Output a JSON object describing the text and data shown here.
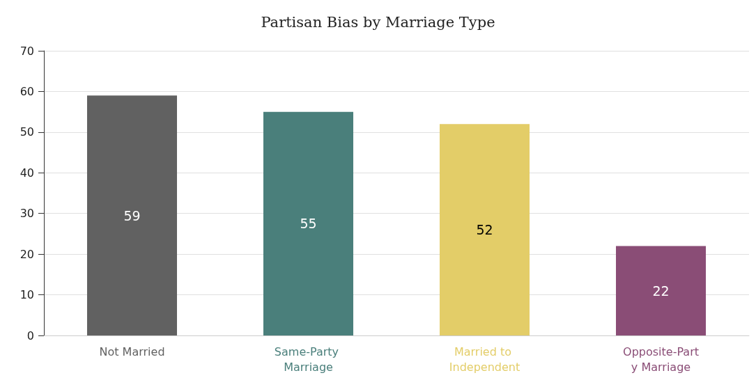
{
  "chart_data": {
    "type": "bar",
    "title": "Partisan Bias by Marriage Type",
    "categories": [
      "Not Married",
      "Same-Party Marriage",
      "Married to Independent",
      "Opposite-Party Marriage"
    ],
    "values": [
      59,
      55,
      52,
      22
    ],
    "colors": [
      "#616161",
      "#4a7f7b",
      "#e3cd68",
      "#8a4d76"
    ],
    "ylim": [
      0,
      70
    ],
    "yticks": [
      0,
      10,
      20,
      30,
      40,
      50,
      60,
      70
    ],
    "grid": "y",
    "data_labels": true
  }
}
